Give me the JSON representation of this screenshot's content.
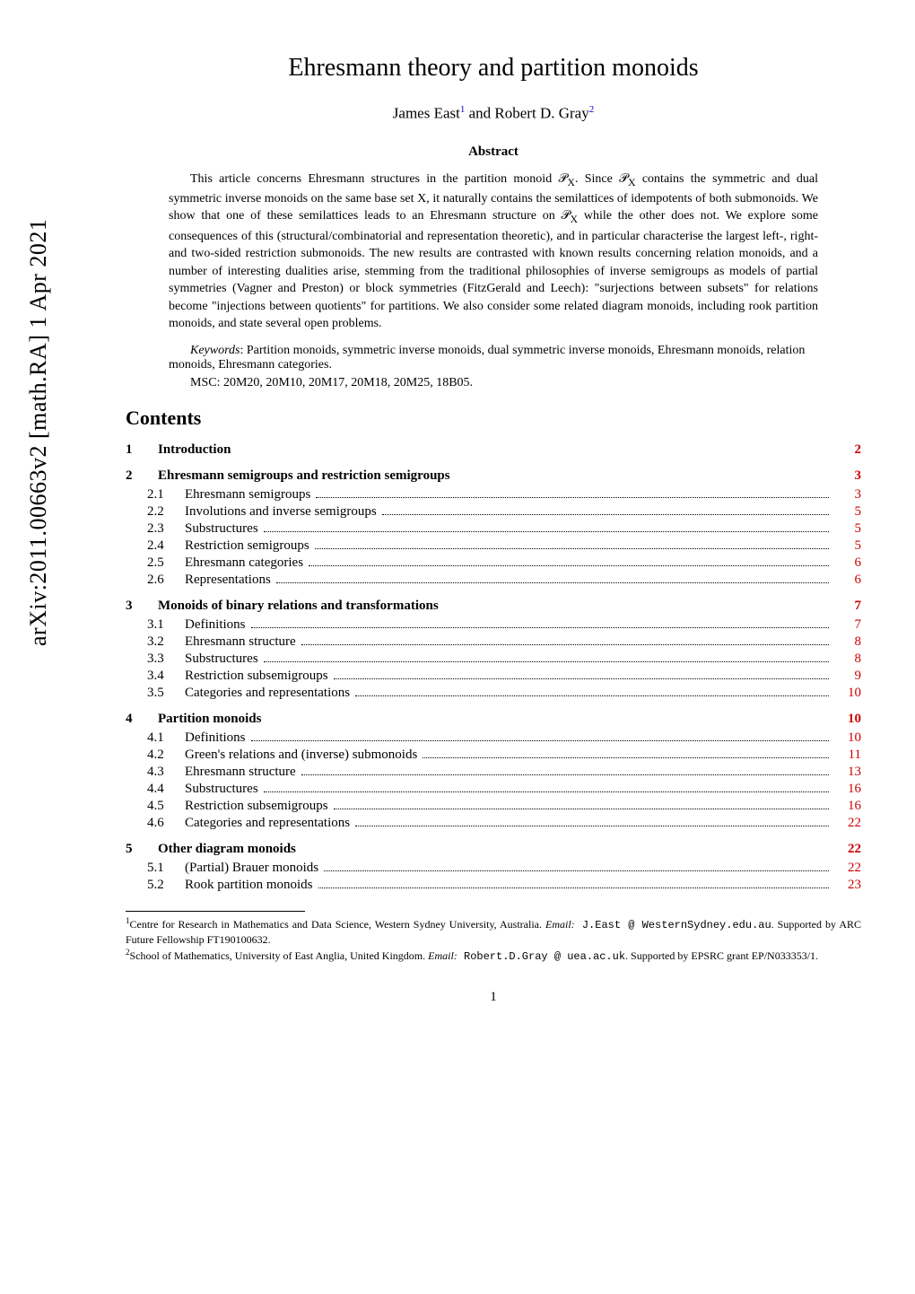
{
  "arxiv_id": "arXiv:2011.00663v2 [math.RA] 1 Apr 2021",
  "title": "Ehresmann theory and partition monoids",
  "authors_html": "James East<sup>1</sup> and Robert D. Gray<sup>2</sup>",
  "abstract_heading": "Abstract",
  "abstract_body": "This article concerns Ehresmann structures in the partition monoid 𝒫<sub>X</sub>. Since 𝒫<sub>X</sub> contains the symmetric and dual symmetric inverse monoids on the same base set X, it naturally contains the semilattices of idempotents of both submonoids. We show that one of these semilattices leads to an Ehresmann structure on 𝒫<sub>X</sub> while the other does not. We explore some consequences of this (structural/combinatorial and representation theoretic), and in particular characterise the largest left-, right- and two-sided restriction submonoids. The new results are contrasted with known results concerning relation monoids, and a number of interesting dualities arise, stemming from the traditional philosophies of inverse semigroups as models of partial symmetries (Vagner and Preston) or block symmetries (FitzGerald and Leech): \"surjections between subsets\" for relations become \"injections between quotients\" for partitions. We also consider some related diagram monoids, including rook partition monoids, and state several open problems.",
  "keywords_label": "Keywords",
  "keywords": ": Partition monoids, symmetric inverse monoids, dual symmetric inverse monoids, Ehresmann monoids, relation monoids, Ehresmann categories.",
  "msc": "MSC: 20M20, 20M10, 20M17, 20M18, 20M25, 18B05.",
  "contents_heading": "Contents",
  "toc": [
    {
      "num": "1",
      "label": "Introduction",
      "page": "2",
      "section": true
    },
    {
      "num": "2",
      "label": "Ehresmann semigroups and restriction semigroups",
      "page": "3",
      "section": true
    },
    {
      "num": "2.1",
      "label": "Ehresmann semigroups",
      "page": "3"
    },
    {
      "num": "2.2",
      "label": "Involutions and inverse semigroups",
      "page": "5"
    },
    {
      "num": "2.3",
      "label": "Substructures",
      "page": "5"
    },
    {
      "num": "2.4",
      "label": "Restriction semigroups",
      "page": "5"
    },
    {
      "num": "2.5",
      "label": "Ehresmann categories",
      "page": "6"
    },
    {
      "num": "2.6",
      "label": "Representations",
      "page": "6"
    },
    {
      "num": "3",
      "label": "Monoids of binary relations and transformations",
      "page": "7",
      "section": true
    },
    {
      "num": "3.1",
      "label": "Definitions",
      "page": "7"
    },
    {
      "num": "3.2",
      "label": "Ehresmann structure",
      "page": "8"
    },
    {
      "num": "3.3",
      "label": "Substructures",
      "page": "8"
    },
    {
      "num": "3.4",
      "label": "Restriction subsemigroups",
      "page": "9"
    },
    {
      "num": "3.5",
      "label": "Categories and representations",
      "page": "10"
    },
    {
      "num": "4",
      "label": "Partition monoids",
      "page": "10",
      "section": true
    },
    {
      "num": "4.1",
      "label": "Definitions",
      "page": "10"
    },
    {
      "num": "4.2",
      "label": "Green's relations and (inverse) submonoids",
      "page": "11"
    },
    {
      "num": "4.3",
      "label": "Ehresmann structure",
      "page": "13"
    },
    {
      "num": "4.4",
      "label": "Substructures",
      "page": "16"
    },
    {
      "num": "4.5",
      "label": "Restriction subsemigroups",
      "page": "16"
    },
    {
      "num": "4.6",
      "label": "Categories and representations",
      "page": "22"
    },
    {
      "num": "5",
      "label": "Other diagram monoids",
      "page": "22",
      "section": true
    },
    {
      "num": "5.1",
      "label": "(Partial) Brauer monoids",
      "page": "22"
    },
    {
      "num": "5.2",
      "label": "Rook partition monoids",
      "page": "23"
    }
  ],
  "footnote1": {
    "sup": "1",
    "text": "Centre for Research in Mathematics and Data Science, Western Sydney University, Australia. ",
    "email_label": "Email:",
    "email": " J.East @ WesternSydney.edu.au",
    "suffix": ". Supported by ARC Future Fellowship FT190100632."
  },
  "footnote2": {
    "sup": "2",
    "text": "School of Mathematics, University of East Anglia, United Kingdom. ",
    "email_label": "Email:",
    "email": " Robert.D.Gray @ uea.ac.uk",
    "suffix": ". Supported by EPSRC grant EP/N033353/1."
  },
  "page_number": "1",
  "colors": {
    "link_red": "#cc0000",
    "link_blue": "#0000cc",
    "background": "#ffffff",
    "text": "#000000"
  },
  "typography": {
    "title_fontsize": 28,
    "author_fontsize": 17,
    "abstract_fontsize": 14,
    "toc_fontsize": 15,
    "footnote_fontsize": 12,
    "arxiv_fontsize": 26
  }
}
